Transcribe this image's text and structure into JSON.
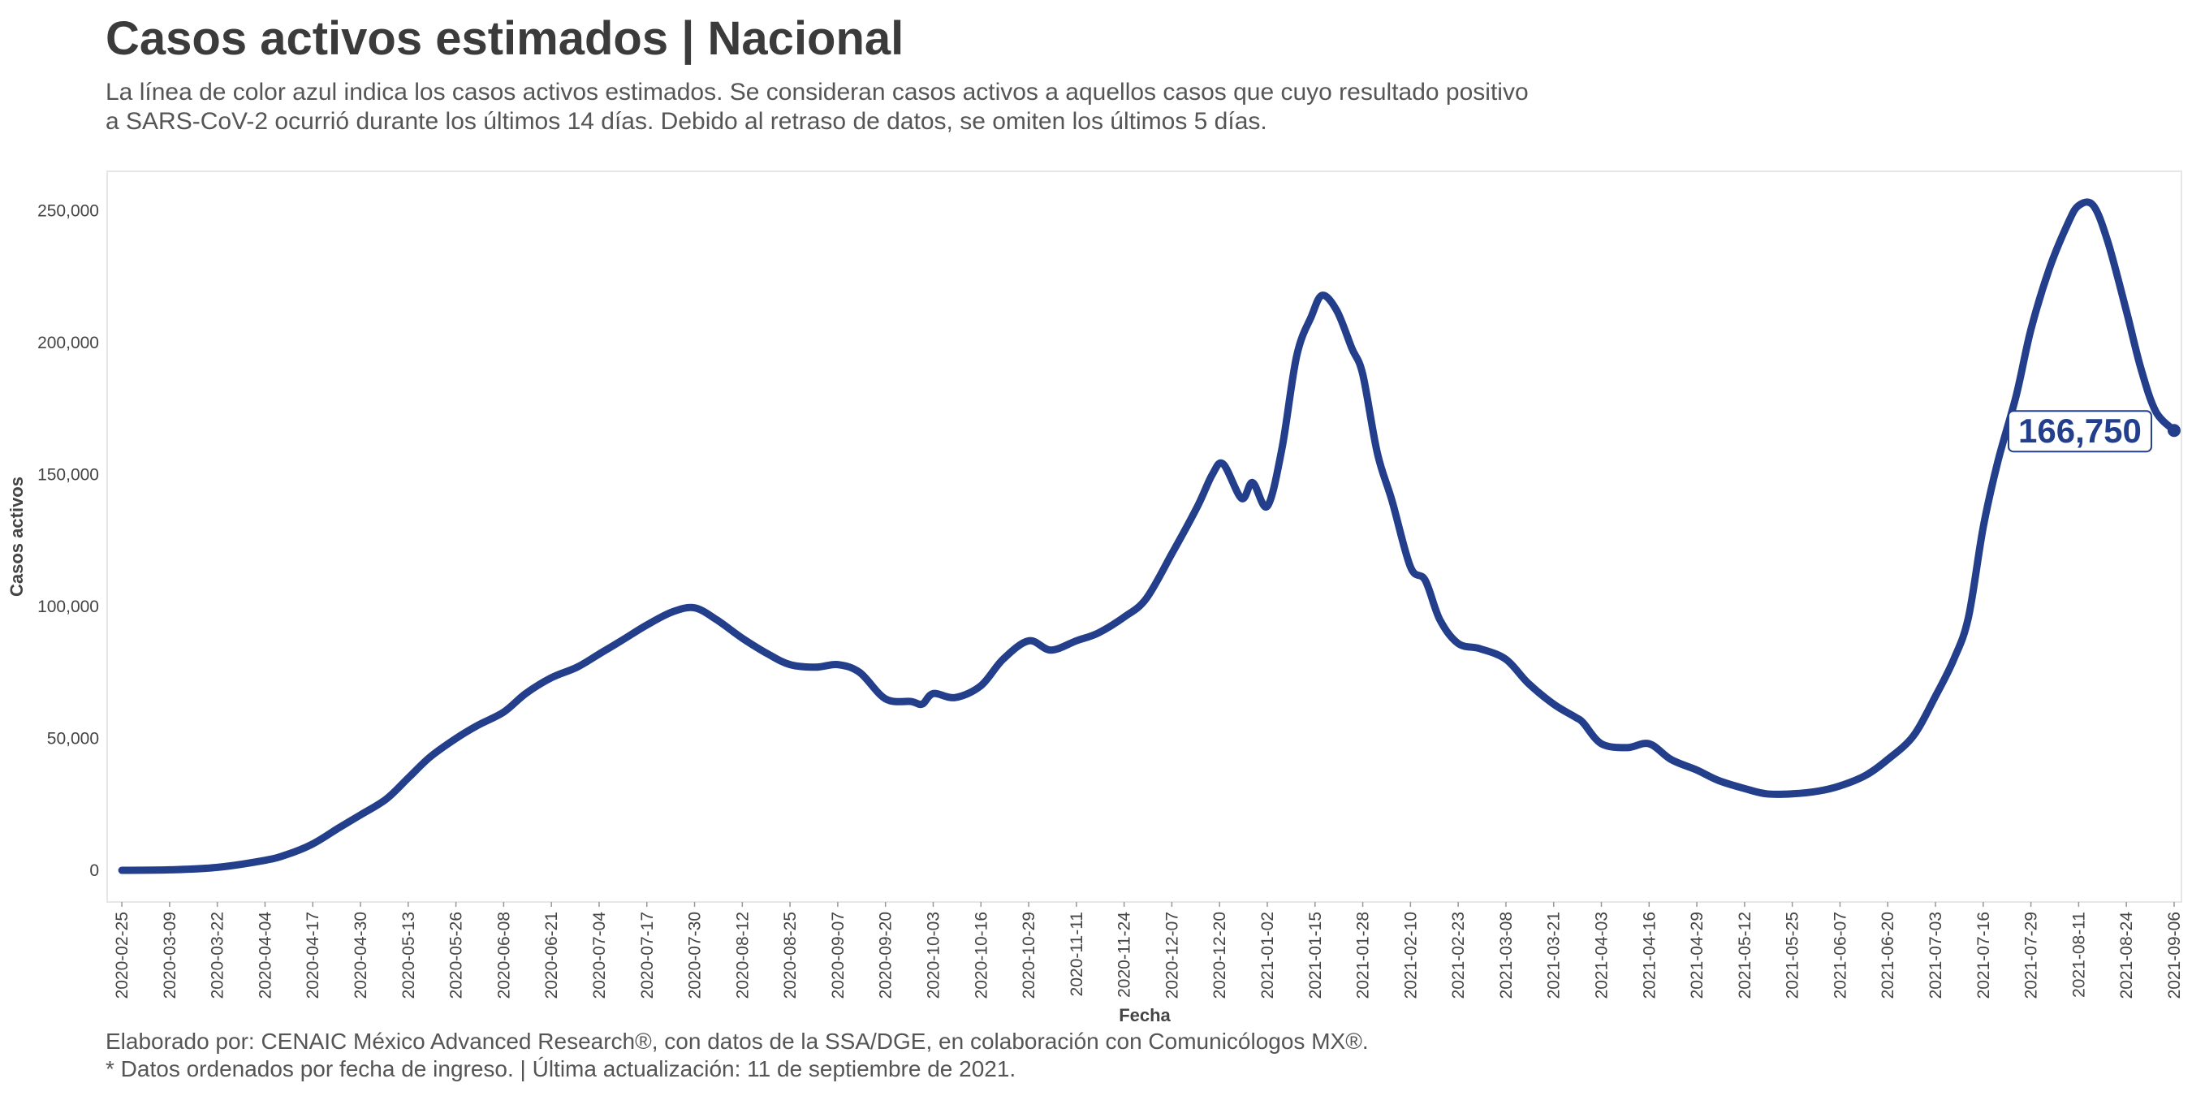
{
  "header": {
    "title": "Casos activos estimados | Nacional",
    "subtitle_line1": "La línea de color azul indica los casos activos estimados. Se consideran casos activos a aquellos casos que cuyo resultado positivo",
    "subtitle_line2": "a SARS-CoV-2 ocurrió durante los últimos 14 días. Debido al retraso de datos, se omiten los últimos 5 días."
  },
  "footer": {
    "caption_line1": "Elaborado por: CENAIC México Advanced Research®, con datos de la SSA/DGE, en colaboración con Comunicólogos MX®.",
    "caption_line2": "* Datos ordenados por fecha de ingreso. | Última actualización: 11 de septiembre de 2021."
  },
  "colors": {
    "line": "#233f8c",
    "panel_border": "#e6e6e6",
    "text": "#444444"
  },
  "chart_data": {
    "type": "line",
    "title": "Casos activos estimados | Nacional",
    "xlabel": "Fecha",
    "ylabel": "Casos activos",
    "ylim": [
      -12000,
      265000
    ],
    "xlim": [
      "2020-02-21",
      "2021-09-08"
    ],
    "grid": false,
    "legend": "none",
    "y_ticks": [
      0,
      50000,
      100000,
      150000,
      200000,
      250000
    ],
    "y_tick_labels": [
      "0",
      "50,000",
      "100,000",
      "150,000",
      "200,000",
      "250,000"
    ],
    "x_tick_labels": [
      "2020-02-25",
      "2020-03-09",
      "2020-03-22",
      "2020-04-04",
      "2020-04-17",
      "2020-04-30",
      "2020-05-13",
      "2020-05-26",
      "2020-06-08",
      "2020-06-21",
      "2020-07-04",
      "2020-07-17",
      "2020-07-30",
      "2020-08-12",
      "2020-08-25",
      "2020-09-07",
      "2020-09-20",
      "2020-10-03",
      "2020-10-16",
      "2020-10-29",
      "2020-11-11",
      "2020-11-24",
      "2020-12-07",
      "2020-12-20",
      "2021-01-02",
      "2021-01-15",
      "2021-01-28",
      "2021-02-10",
      "2021-02-23",
      "2021-03-08",
      "2021-03-21",
      "2021-04-03",
      "2021-04-16",
      "2021-04-29",
      "2021-05-12",
      "2021-05-25",
      "2021-06-07",
      "2021-06-20",
      "2021-07-03",
      "2021-07-16",
      "2021-07-29",
      "2021-08-11",
      "2021-08-24",
      "2021-09-06"
    ],
    "end_label": "166,750",
    "series": [
      {
        "x": [
          "2020-02-25",
          "2020-03-09",
          "2020-03-22",
          "2020-04-04",
          "2020-04-10",
          "2020-04-17",
          "2020-04-24",
          "2020-04-30",
          "2020-05-07",
          "2020-05-13",
          "2020-05-19",
          "2020-05-26",
          "2020-06-01",
          "2020-06-08",
          "2020-06-14",
          "2020-06-21",
          "2020-06-28",
          "2020-07-04",
          "2020-07-10",
          "2020-07-17",
          "2020-07-24",
          "2020-07-30",
          "2020-08-05",
          "2020-08-12",
          "2020-08-19",
          "2020-08-25",
          "2020-09-01",
          "2020-09-07",
          "2020-09-13",
          "2020-09-20",
          "2020-09-27",
          "2020-09-30",
          "2020-10-03",
          "2020-10-09",
          "2020-10-16",
          "2020-10-22",
          "2020-10-29",
          "2020-11-04",
          "2020-11-11",
          "2020-11-17",
          "2020-11-24",
          "2020-11-30",
          "2020-12-07",
          "2020-12-14",
          "2020-12-18",
          "2020-12-21",
          "2020-12-26",
          "2020-12-29",
          "2021-01-02",
          "2021-01-06",
          "2021-01-10",
          "2021-01-14",
          "2021-01-17",
          "2021-01-21",
          "2021-01-25",
          "2021-01-28",
          "2021-02-01",
          "2021-02-05",
          "2021-02-10",
          "2021-02-14",
          "2021-02-18",
          "2021-02-23",
          "2021-03-01",
          "2021-03-08",
          "2021-03-14",
          "2021-03-21",
          "2021-03-27",
          "2021-03-29",
          "2021-04-03",
          "2021-04-10",
          "2021-04-16",
          "2021-04-22",
          "2021-04-29",
          "2021-05-05",
          "2021-05-12",
          "2021-05-18",
          "2021-05-25",
          "2021-06-01",
          "2021-06-07",
          "2021-06-14",
          "2021-06-20",
          "2021-06-27",
          "2021-07-03",
          "2021-07-08",
          "2021-07-12",
          "2021-07-16",
          "2021-07-20",
          "2021-07-25",
          "2021-07-29",
          "2021-08-03",
          "2021-08-08",
          "2021-08-11",
          "2021-08-15",
          "2021-08-19",
          "2021-08-24",
          "2021-08-28",
          "2021-09-01",
          "2021-09-06"
        ],
        "y": [
          0,
          200,
          1100,
          3800,
          6000,
          10000,
          16000,
          21000,
          27000,
          35000,
          43000,
          50000,
          55000,
          60000,
          67000,
          73000,
          77000,
          82000,
          87000,
          93000,
          98000,
          99500,
          95000,
          88000,
          82000,
          78000,
          77000,
          78000,
          75000,
          65000,
          64000,
          63000,
          67000,
          65500,
          70000,
          80000,
          87000,
          83500,
          87000,
          90000,
          96000,
          103000,
          120000,
          138000,
          150000,
          154000,
          141000,
          147000,
          138000,
          160000,
          195000,
          210000,
          218000,
          212000,
          198000,
          188000,
          158000,
          140000,
          115000,
          110000,
          95000,
          86000,
          84000,
          80000,
          71000,
          63000,
          58000,
          56000,
          48000,
          46500,
          48000,
          42000,
          38000,
          34000,
          31000,
          29000,
          29000,
          30000,
          32000,
          36000,
          42000,
          51000,
          66000,
          80000,
          96000,
          130000,
          155000,
          180000,
          205000,
          228000,
          245000,
          252000,
          252000,
          238000,
          212000,
          190000,
          174000,
          166750
        ]
      }
    ]
  }
}
